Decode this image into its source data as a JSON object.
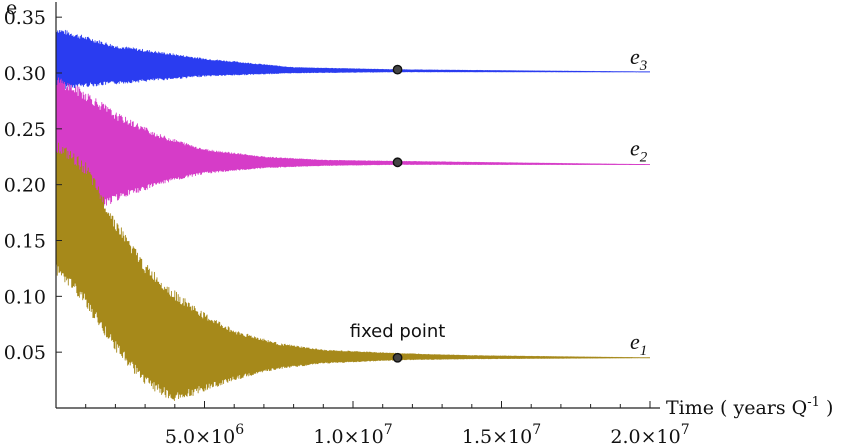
{
  "chart_data": {
    "type": "line",
    "ylabel": "e",
    "xlabel": "Time ( years Q",
    "xlabel_sup": "-1",
    "xlabel_end": " )",
    "xlim": [
      0,
      20000000
    ],
    "ylim": [
      0,
      0.36
    ],
    "x_ticks": [
      {
        "value": 5000000,
        "label": "5.0×10",
        "exp": "6"
      },
      {
        "value": 10000000,
        "label": "1.0×10",
        "exp": "7"
      },
      {
        "value": 15000000,
        "label": "1.5×10",
        "exp": "7"
      },
      {
        "value": 20000000,
        "label": "2.0×10",
        "exp": "7"
      }
    ],
    "y_ticks": [
      {
        "value": 0.05,
        "label": "0.05"
      },
      {
        "value": 0.1,
        "label": "0.10"
      },
      {
        "value": 0.15,
        "label": "0.15"
      },
      {
        "value": 0.2,
        "label": "0.20"
      },
      {
        "value": 0.25,
        "label": "0.25"
      },
      {
        "value": 0.3,
        "label": "0.30"
      },
      {
        "value": 0.35,
        "label": "0.35"
      }
    ],
    "series": [
      {
        "name": "e",
        "sub": "3",
        "color": "#2a3cf0",
        "final": 0.3,
        "envelope": [
          [
            0,
            0.285,
            0.341
          ],
          [
            2000000,
            0.29,
            0.325
          ],
          [
            5000000,
            0.297,
            0.313
          ],
          [
            8000000,
            0.3,
            0.305
          ],
          [
            11500000,
            0.301,
            0.303
          ],
          [
            20000000,
            0.301,
            0.301
          ]
        ]
      },
      {
        "name": "e",
        "sub": "2",
        "color": "#d63cc8",
        "final": 0.218,
        "envelope": [
          [
            0,
            0.195,
            0.298
          ],
          [
            1000000,
            0.17,
            0.285
          ],
          [
            2000000,
            0.185,
            0.265
          ],
          [
            3500000,
            0.2,
            0.245
          ],
          [
            5000000,
            0.21,
            0.232
          ],
          [
            7000000,
            0.215,
            0.225
          ],
          [
            9000000,
            0.217,
            0.222
          ],
          [
            11500000,
            0.218,
            0.221
          ],
          [
            20000000,
            0.218,
            0.218
          ]
        ]
      },
      {
        "name": "e",
        "sub": "1",
        "color": "#a6891a",
        "final": 0.045,
        "envelope": [
          [
            0,
            0.12,
            0.24
          ],
          [
            1000000,
            0.09,
            0.22
          ],
          [
            2000000,
            0.05,
            0.17
          ],
          [
            3000000,
            0.02,
            0.13
          ],
          [
            4000000,
            0.005,
            0.105
          ],
          [
            5000000,
            0.015,
            0.085
          ],
          [
            6000000,
            0.025,
            0.07
          ],
          [
            7500000,
            0.035,
            0.058
          ],
          [
            9000000,
            0.04,
            0.052
          ],
          [
            11500000,
            0.043,
            0.049
          ],
          [
            14000000,
            0.044,
            0.047
          ],
          [
            20000000,
            0.045,
            0.045
          ]
        ]
      }
    ],
    "fixed_points": [
      {
        "x": 11500000,
        "y": 0.303
      },
      {
        "x": 11500000,
        "y": 0.22
      },
      {
        "x": 11500000,
        "y": 0.045
      }
    ],
    "annotation": {
      "text": "fixed point",
      "x": 11500000,
      "y": 0.06
    }
  }
}
